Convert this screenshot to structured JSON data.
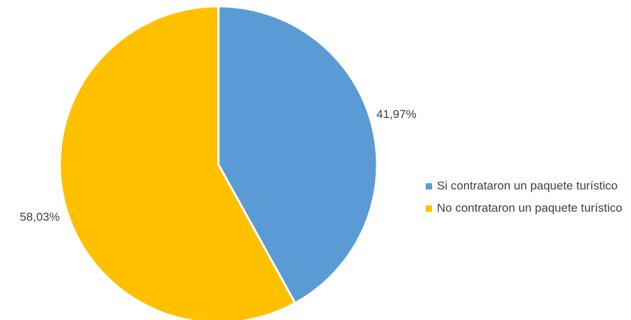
{
  "chart_data": {
    "type": "pie",
    "categories": [
      "Si contrataron un paquete turístico",
      "No contrataron un paquete turístico"
    ],
    "values": [
      41.97,
      58.03
    ],
    "data_labels": [
      "41,97%",
      "58,03%"
    ],
    "colors": [
      "#5B9BD5",
      "#FFC000"
    ],
    "title": "",
    "legend_position": "right",
    "start_angle": "top, clockwise"
  }
}
